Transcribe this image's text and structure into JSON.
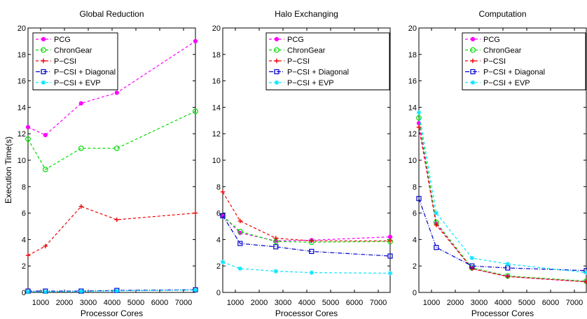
{
  "figure": {
    "ylabel": "Execution Time(s)"
  },
  "chart_data": [
    {
      "type": "line",
      "title": "Global Reduction",
      "xlabel": "Processor Cores",
      "ylabel": "Execution Time(s)",
      "xlim": [
        470,
        7500
      ],
      "ylim": [
        0,
        20
      ],
      "xticks": [
        1000,
        2000,
        3000,
        4000,
        5000,
        6000,
        7000
      ],
      "yticks": [
        0,
        2,
        4,
        6,
        8,
        10,
        12,
        14,
        16,
        18,
        20
      ],
      "x": [
        470,
        1200,
        2700,
        4200,
        7500
      ],
      "legend_position": "top-left",
      "series": [
        {
          "name": "PCG",
          "color": "#ff00ff",
          "marker": "dot",
          "values": [
            12.5,
            11.9,
            14.3,
            15.1,
            19.0
          ]
        },
        {
          "name": "ChronGear",
          "color": "#00dd00",
          "marker": "circle",
          "values": [
            11.6,
            9.3,
            10.9,
            10.9,
            13.7
          ]
        },
        {
          "name": "P−CSI",
          "color": "#ee0000",
          "marker": "plus",
          "values": [
            2.8,
            3.5,
            6.5,
            5.5,
            6.0
          ]
        },
        {
          "name": "P−CSI + Diagonal",
          "color": "#0000cc",
          "marker": "square",
          "values": [
            0.1,
            0.1,
            0.1,
            0.15,
            0.2
          ]
        },
        {
          "name": "P−CSI + EVP",
          "color": "#00e5ff",
          "marker": "star",
          "values": [
            0.05,
            0.05,
            0.08,
            0.12,
            0.18
          ]
        }
      ]
    },
    {
      "type": "line",
      "title": "Halo Exchanging",
      "xlabel": "Processor Cores",
      "ylabel": "",
      "xlim": [
        470,
        7500
      ],
      "ylim": [
        0,
        20
      ],
      "xticks": [
        1000,
        2000,
        3000,
        4000,
        5000,
        6000,
        7000
      ],
      "yticks": [
        0,
        2,
        4,
        6,
        8,
        10,
        12,
        14,
        16,
        18,
        20
      ],
      "x": [
        470,
        1200,
        2700,
        4200,
        7500
      ],
      "legend_position": "top-right",
      "series": [
        {
          "name": "PCG",
          "color": "#ff00ff",
          "marker": "dot",
          "values": [
            5.8,
            4.5,
            3.9,
            3.95,
            4.2
          ]
        },
        {
          "name": "ChronGear",
          "color": "#00dd00",
          "marker": "circle",
          "values": [
            5.8,
            4.6,
            3.85,
            3.8,
            3.85
          ]
        },
        {
          "name": "P−CSI",
          "color": "#ee0000",
          "marker": "plus",
          "values": [
            7.6,
            5.4,
            4.1,
            3.9,
            3.9
          ]
        },
        {
          "name": "P−CSI + Diagonal",
          "color": "#0000cc",
          "marker": "square",
          "values": [
            5.8,
            3.7,
            3.45,
            3.1,
            2.75
          ]
        },
        {
          "name": "P−CSI + EVP",
          "color": "#00e5ff",
          "marker": "star",
          "values": [
            2.3,
            1.8,
            1.6,
            1.5,
            1.45
          ]
        }
      ]
    },
    {
      "type": "line",
      "title": "Computation",
      "xlabel": "Processor Cores",
      "ylabel": "",
      "xlim": [
        470,
        7500
      ],
      "ylim": [
        0,
        20
      ],
      "xticks": [
        1000,
        2000,
        3000,
        4000,
        5000,
        6000,
        7000
      ],
      "yticks": [
        0,
        2,
        4,
        6,
        8,
        10,
        12,
        14,
        16,
        18,
        20
      ],
      "x": [
        470,
        1200,
        2700,
        4200,
        7500
      ],
      "legend_position": "top-right",
      "series": [
        {
          "name": "PCG",
          "color": "#ff00ff",
          "marker": "dot",
          "values": [
            12.8,
            5.2,
            1.8,
            1.2,
            0.8
          ]
        },
        {
          "name": "ChronGear",
          "color": "#00dd00",
          "marker": "circle",
          "values": [
            13.2,
            5.3,
            1.85,
            1.25,
            0.85
          ]
        },
        {
          "name": "P−CSI",
          "color": "#ee0000",
          "marker": "plus",
          "values": [
            12.5,
            5.1,
            1.8,
            1.2,
            0.8
          ]
        },
        {
          "name": "P−CSI + Diagonal",
          "color": "#0000cc",
          "marker": "square",
          "values": [
            7.1,
            3.4,
            2.0,
            1.85,
            1.65
          ]
        },
        {
          "name": "P−CSI + EVP",
          "color": "#00e5ff",
          "marker": "star",
          "values": [
            13.6,
            6.0,
            2.6,
            2.15,
            1.5
          ]
        }
      ]
    }
  ]
}
